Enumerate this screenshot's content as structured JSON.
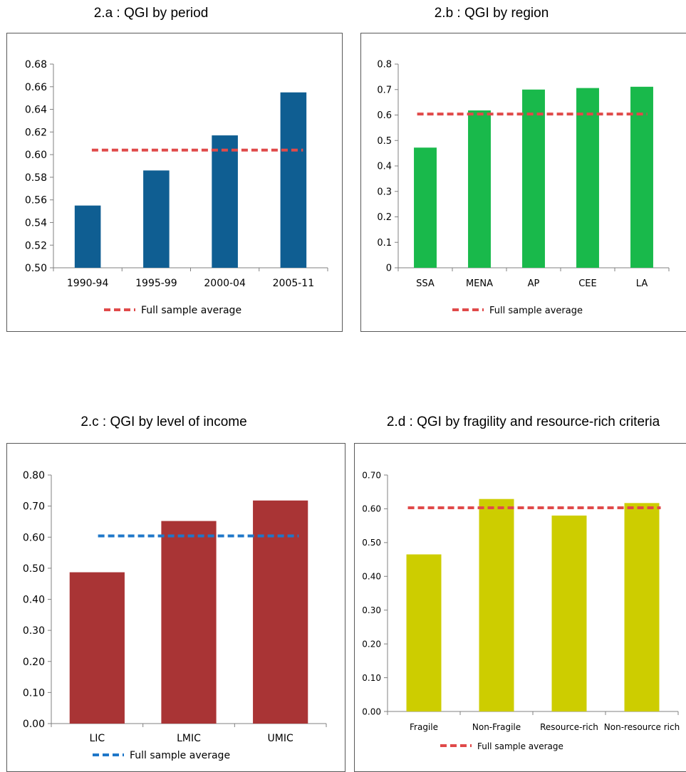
{
  "panels": [
    {
      "title": "2.a : QGI by period",
      "chart_data": {
        "type": "bar",
        "categories": [
          "1990-94",
          "1995-99",
          "2000-04",
          "2005-11"
        ],
        "values": [
          0.555,
          0.586,
          0.617,
          0.655
        ],
        "bar_color": "#0F5E92",
        "ylim": [
          0.5,
          0.68
        ],
        "yticks": [
          "0.50",
          "0.52",
          "0.54",
          "0.56",
          "0.58",
          "0.60",
          "0.62",
          "0.64",
          "0.66",
          "0.68"
        ],
        "reference_line": {
          "name": "Full sample average",
          "value": 0.604,
          "color": "#E04A4A"
        },
        "legend": "bottom"
      }
    },
    {
      "title": "2.b : QGI by region",
      "chart_data": {
        "type": "bar",
        "categories": [
          "SSA",
          "MENA",
          "AP",
          "CEE",
          "LA"
        ],
        "values": [
          0.472,
          0.618,
          0.7,
          0.706,
          0.711
        ],
        "bar_color": "#19B94B",
        "ylim": [
          0,
          0.8
        ],
        "yticks": [
          "0",
          "0.1",
          "0.2",
          "0.3",
          "0.4",
          "0.5",
          "0.6",
          "0.7",
          "0.8"
        ],
        "reference_line": {
          "name": "Full sample average",
          "value": 0.604,
          "color": "#E04A4A"
        },
        "legend": "bottom"
      }
    },
    {
      "title": "2.c : QGI by level of income",
      "chart_data": {
        "type": "bar",
        "categories": [
          "LIC",
          "LMIC",
          "UMIC"
        ],
        "values": [
          0.487,
          0.652,
          0.718
        ],
        "bar_color": "#A93435",
        "ylim": [
          0,
          0.8
        ],
        "yticks": [
          "0.00",
          "0.10",
          "0.20",
          "0.30",
          "0.40",
          "0.50",
          "0.60",
          "0.70",
          "0.80"
        ],
        "reference_line": {
          "name": "Full sample average",
          "value": 0.604,
          "color": "#1F77C9"
        },
        "legend": "bottom"
      }
    },
    {
      "title": "2.d : QGI by fragility and resource-rich criteria",
      "chart_data": {
        "type": "bar",
        "categories": [
          "Fragile",
          "Non-Fragile",
          "Resource-rich",
          "Non-resource rich"
        ],
        "values": [
          0.465,
          0.629,
          0.58,
          0.617
        ],
        "bar_color": "#CDCD00",
        "ylim": [
          0,
          0.7
        ],
        "yticks": [
          "0.00",
          "0.10",
          "0.20",
          "0.30",
          "0.40",
          "0.50",
          "0.60",
          "0.70"
        ],
        "reference_line": {
          "name": "Full sample average",
          "value": 0.603,
          "color": "#E04A4A"
        },
        "legend": "bottom"
      }
    }
  ]
}
